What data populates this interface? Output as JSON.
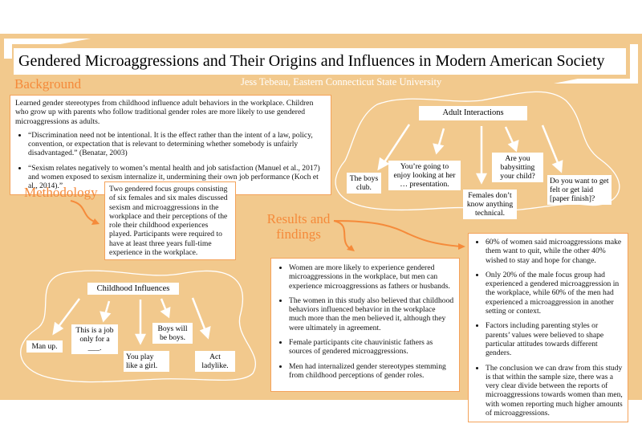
{
  "title": "Gendered Microaggressions and Their Origins and Influences in Modern American Society",
  "author": "Jess Tebeau, Eastern Connecticut State University",
  "background": {
    "heading": "Background",
    "intro": "Learned gender stereotypes from childhood influence adult behaviors in the workplace. Children who grow up with parents who follow traditional gender roles are more likely to use gendered microaggressions as adults.",
    "bullets": [
      "“Discrimination need not be intentional. It is the effect rather than the intent of a law, policy, convention, or expectation that is relevant to determining whether somebody is unfairly disadvantaged.” (Benatar, 2003)",
      "“Sexism relates negatively to women’s mental health and job satisfaction (Manuel et al., 2017) and women exposed to sexism internalize it, undermining their own job performance (Koch et al., 2014).”"
    ]
  },
  "methodology": {
    "heading": "Methodology",
    "text": "Two gendered focus groups consisting of six females and six males discussed sexism and microaggressions in the workplace and their perceptions of the role their childhood experiences played. Participants were required to have at least three years full-time experience in the workplace."
  },
  "childhood": {
    "title": "Childhood Influences",
    "items": [
      "Man up.",
      "This is a job only for a ___.",
      "You play like a girl.",
      "Boys will be boys.",
      "Act ladylike."
    ]
  },
  "adult": {
    "title": "Adult Interactions",
    "items": [
      "The boys club.",
      "You’re going to enjoy looking at her … presentation.",
      "Females don’t know anything technical.",
      "Are you babysitting your child?",
      "Do you want to get felt or get laid [paper finish]?"
    ]
  },
  "results": {
    "heading": "Results and findings",
    "left": [
      "Women are more likely to experience gendered microaggressions in the workplace, but men can experience microaggressions as fathers or husbands.",
      "The women in this study also believed that childhood behaviors influenced behavior in the workplace much more than the men believed it, although they were ultimately in agreement.",
      "Female participants cite chauvinistic fathers as sources of  gendered microaggressions.",
      "Men had internalized gender stereotypes stemming from childhood perceptions of gender roles."
    ],
    "right": [
      "60% of women said microaggressions make them want to quit, while the other 40% wished to stay and hope for change.",
      "Only 20% of the male focus group had experienced a gendered microaggression in the workplace, while 60% of the men had experienced a microaggression in another setting or context.",
      "Factors including parenting styles or parents’ values were believed to shape particular attitudes towards different genders.",
      "The conclusion we can draw from this study is that within the sample size, there was a very clear divide between the reports of microaggressions towards women than men, with women reporting much higher amounts of microaggressions."
    ]
  },
  "colors": {
    "poster": "#f2c98d",
    "accent": "#f58a3a",
    "border": "#f4a25a"
  }
}
